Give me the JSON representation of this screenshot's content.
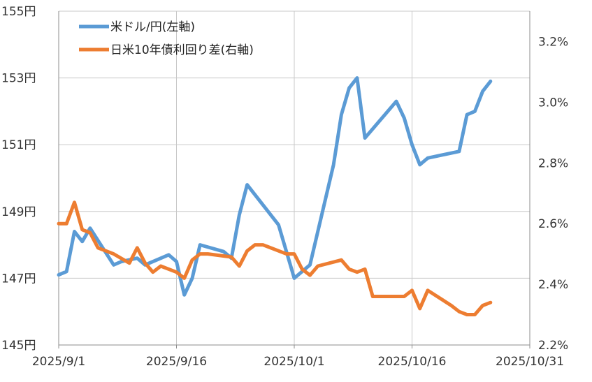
{
  "chart_data": {
    "type": "line",
    "x_axis": {
      "tick_labels": [
        "2025/9/1",
        "2025/9/16",
        "2025/10/1",
        "2025/10/16",
        "2025/10/31"
      ],
      "range": [
        "2025-09-01",
        "2025-10-31"
      ]
    },
    "y_left": {
      "tick_labels": [
        "145円",
        "147円",
        "149円",
        "151円",
        "153円",
        "155円"
      ],
      "range": [
        145,
        155
      ],
      "step": 2,
      "unit": "円"
    },
    "y_right": {
      "tick_labels": [
        "2.2%",
        "2.4%",
        "2.6%",
        "2.8%",
        "3.0%",
        "3.2%"
      ],
      "range": [
        2.2,
        3.3
      ],
      "step": 0.2,
      "unit": "%"
    },
    "grid": true,
    "legend_position": "top-left",
    "series": [
      {
        "name": "米ドル/円(左軸)",
        "axis": "left",
        "color": "#5b9bd5",
        "points": [
          [
            "2025-09-01",
            147.1
          ],
          [
            "2025-09-02",
            147.2
          ],
          [
            "2025-09-03",
            148.4
          ],
          [
            "2025-09-04",
            148.1
          ],
          [
            "2025-09-05",
            148.5
          ],
          [
            "2025-09-08",
            147.4
          ],
          [
            "2025-09-09",
            147.5
          ],
          [
            "2025-09-11",
            147.6
          ],
          [
            "2025-09-12",
            147.4
          ],
          [
            "2025-09-15",
            147.7
          ],
          [
            "2025-09-16",
            147.5
          ],
          [
            "2025-09-17",
            146.5
          ],
          [
            "2025-09-18",
            147.0
          ],
          [
            "2025-09-19",
            148.0
          ],
          [
            "2025-09-22",
            147.8
          ],
          [
            "2025-09-23",
            147.6
          ],
          [
            "2025-09-24",
            148.9
          ],
          [
            "2025-09-25",
            149.8
          ],
          [
            "2025-09-29",
            148.6
          ],
          [
            "2025-10-01",
            147.0
          ],
          [
            "2025-10-02",
            147.2
          ],
          [
            "2025-10-03",
            147.4
          ],
          [
            "2025-10-06",
            150.4
          ],
          [
            "2025-10-07",
            151.9
          ],
          [
            "2025-10-08",
            152.7
          ],
          [
            "2025-10-09",
            153.0
          ],
          [
            "2025-10-10",
            151.2
          ],
          [
            "2025-10-14",
            152.3
          ],
          [
            "2025-10-15",
            151.8
          ],
          [
            "2025-10-16",
            151.0
          ],
          [
            "2025-10-17",
            150.4
          ],
          [
            "2025-10-18",
            150.6
          ],
          [
            "2025-10-22",
            150.8
          ],
          [
            "2025-10-23",
            151.9
          ],
          [
            "2025-10-24",
            152.0
          ],
          [
            "2025-10-25",
            152.6
          ],
          [
            "2025-10-26",
            152.9
          ]
        ]
      },
      {
        "name": "日米10年債利回り差(右軸)",
        "axis": "right",
        "color": "#ed7d31",
        "points": [
          [
            "2025-09-01",
            2.6
          ],
          [
            "2025-09-02",
            2.6
          ],
          [
            "2025-09-03",
            2.67
          ],
          [
            "2025-09-04",
            2.58
          ],
          [
            "2025-09-05",
            2.57
          ],
          [
            "2025-09-06",
            2.52
          ],
          [
            "2025-09-08",
            2.5
          ],
          [
            "2025-09-10",
            2.47
          ],
          [
            "2025-09-11",
            2.52
          ],
          [
            "2025-09-12",
            2.47
          ],
          [
            "2025-09-13",
            2.44
          ],
          [
            "2025-09-14",
            2.46
          ],
          [
            "2025-09-16",
            2.44
          ],
          [
            "2025-09-17",
            2.42
          ],
          [
            "2025-09-18",
            2.48
          ],
          [
            "2025-09-19",
            2.5
          ],
          [
            "2025-09-20",
            2.5
          ],
          [
            "2025-09-23",
            2.49
          ],
          [
            "2025-09-24",
            2.46
          ],
          [
            "2025-09-25",
            2.51
          ],
          [
            "2025-09-26",
            2.53
          ],
          [
            "2025-09-27",
            2.53
          ],
          [
            "2025-09-30",
            2.5
          ],
          [
            "2025-10-01",
            2.5
          ],
          [
            "2025-10-02",
            2.45
          ],
          [
            "2025-10-03",
            2.43
          ],
          [
            "2025-10-04",
            2.46
          ],
          [
            "2025-10-07",
            2.48
          ],
          [
            "2025-10-08",
            2.45
          ],
          [
            "2025-10-09",
            2.44
          ],
          [
            "2025-10-10",
            2.45
          ],
          [
            "2025-10-11",
            2.36
          ],
          [
            "2025-10-15",
            2.36
          ],
          [
            "2025-10-16",
            2.38
          ],
          [
            "2025-10-17",
            2.32
          ],
          [
            "2025-10-18",
            2.38
          ],
          [
            "2025-10-21",
            2.33
          ],
          [
            "2025-10-22",
            2.31
          ],
          [
            "2025-10-23",
            2.3
          ],
          [
            "2025-10-24",
            2.3
          ],
          [
            "2025-10-25",
            2.33
          ],
          [
            "2025-10-26",
            2.34
          ]
        ]
      }
    ]
  }
}
